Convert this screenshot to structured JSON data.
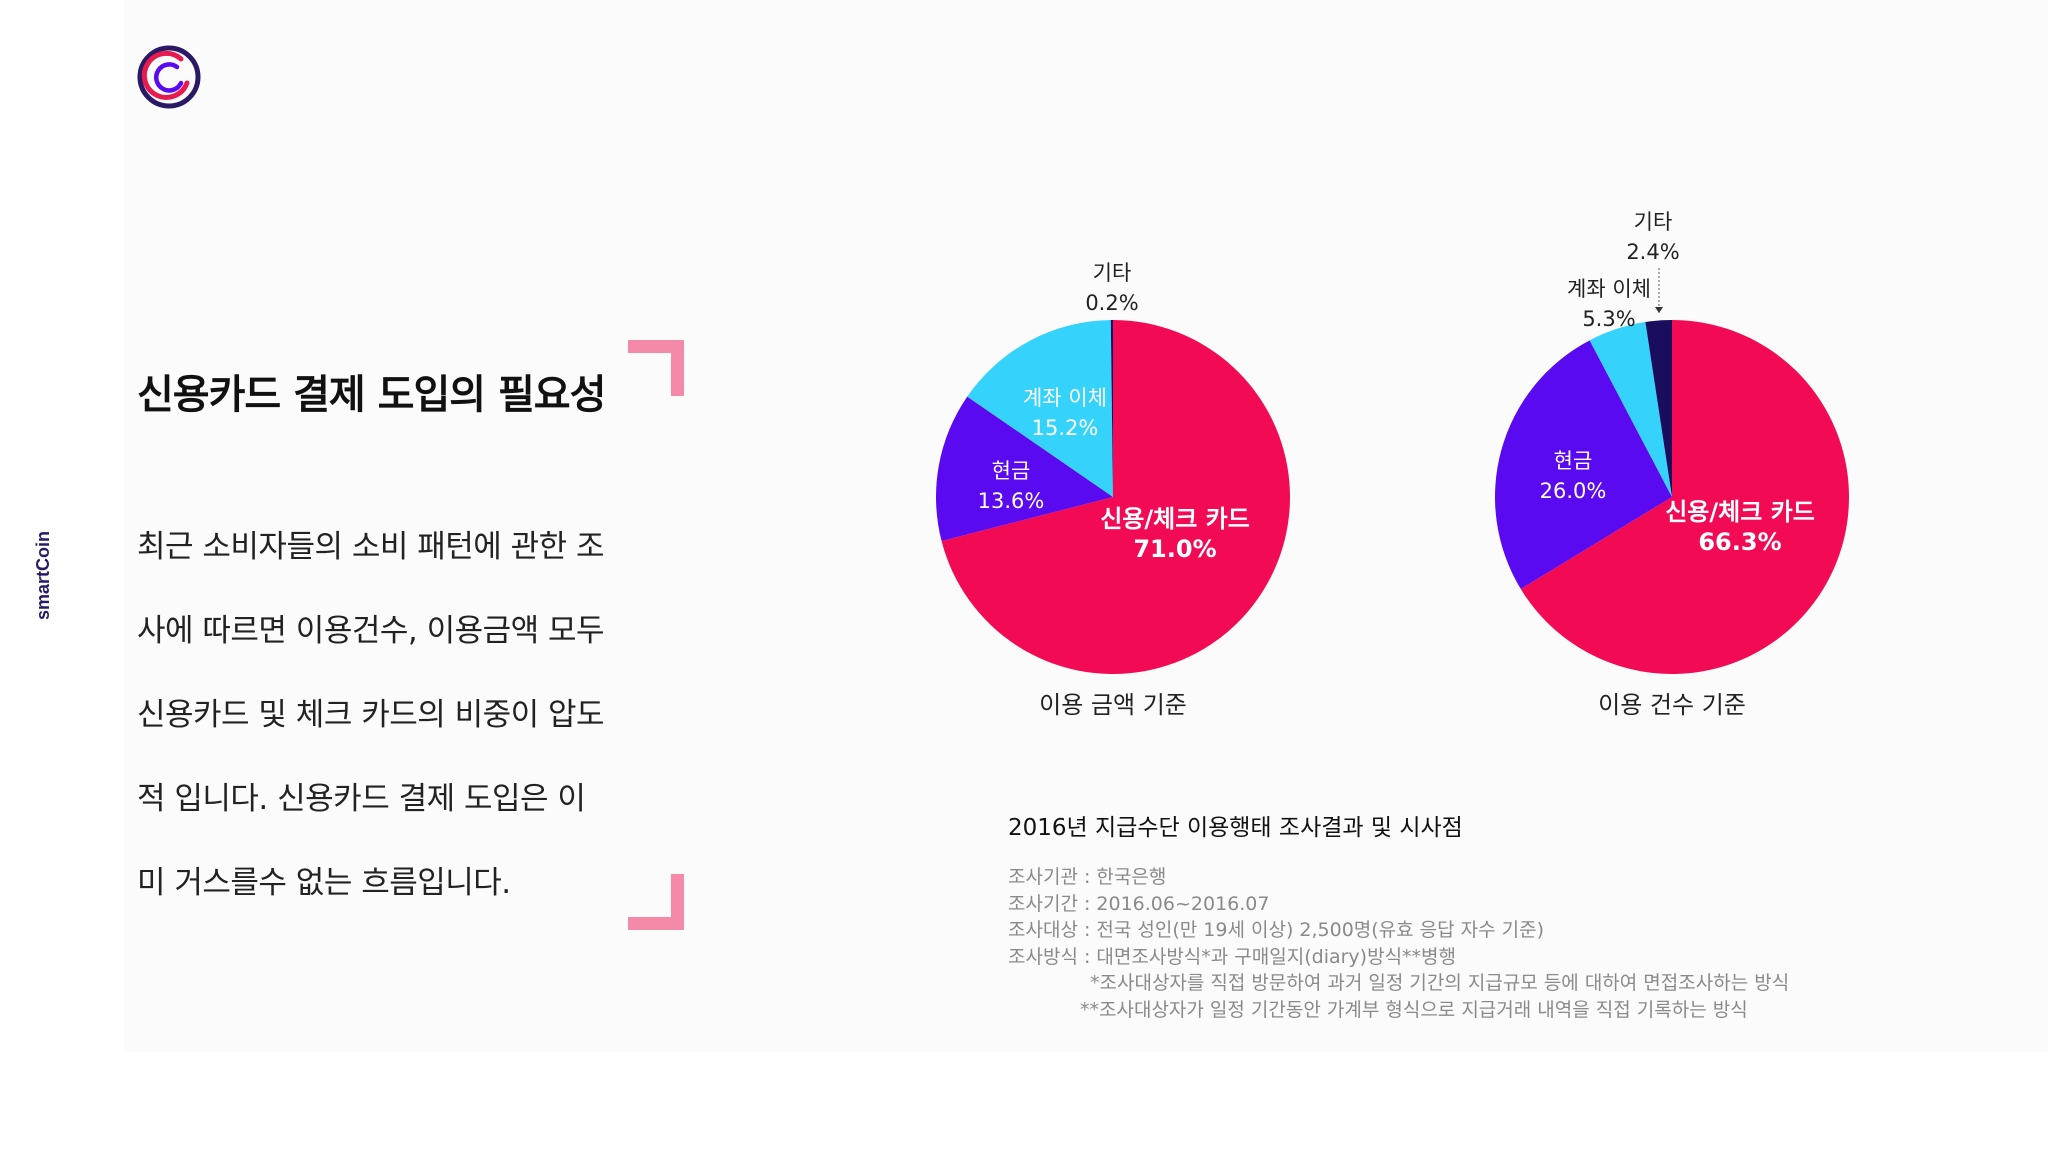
{
  "brand": {
    "side_label": "smartCoin",
    "colors": {
      "logo_outer": "#2a1a66",
      "logo_inner": "#e8194f",
      "accent_bracket": "#f58aa8"
    }
  },
  "slide": {
    "title": "신용카드 결제 도입의 필요성",
    "body_lines": [
      "최근 소비자들의 소비 패턴에 관한 조",
      "사에 따르면 이용건수, 이용금액 모두",
      "신용카드 및 체크 카드의 비중이 압도",
      "적 입니다. 신용카드 결제 도입은 이",
      "미 거스를수 없는 흐름입니다."
    ]
  },
  "chart_data": [
    {
      "type": "pie",
      "xlabel": "이용 금액 기준",
      "slices": [
        {
          "label": "신용/체크 카드",
          "value": 71.0,
          "value_text": "71.0%",
          "color": "#f20a55"
        },
        {
          "label": "현금",
          "value": 13.6,
          "value_text": "13.6%",
          "color": "#5a0af0"
        },
        {
          "label": "계좌 이체",
          "value": 15.2,
          "value_text": "15.2%",
          "color": "#35d2fb"
        },
        {
          "label": "기타",
          "value": 0.2,
          "value_text": "0.2%",
          "color": "#1a0d5e"
        }
      ]
    },
    {
      "type": "pie",
      "xlabel": "이용 건수 기준",
      "slices": [
        {
          "label": "신용/체크 카드",
          "value": 66.3,
          "value_text": "66.3%",
          "color": "#f20a55"
        },
        {
          "label": "현금",
          "value": 26.0,
          "value_text": "26.0%",
          "color": "#5a0af0"
        },
        {
          "label": "계좌 이체",
          "value": 5.3,
          "value_text": "5.3%",
          "color": "#35d2fb"
        },
        {
          "label": "기타",
          "value": 2.4,
          "value_text": "2.4%",
          "color": "#1a0d5e"
        }
      ]
    }
  ],
  "survey": {
    "title": "2016년 지급수단 이용행태 조사결과 및 시사점",
    "lines": [
      "조사기관 : 한국은행",
      "조사기간 : 2016.06~2016.07",
      "조사대상 : 전국 성인(만 19세 이상) 2,500명(유효 응답 자수 기준)",
      "조사방식 : 대면조사방식*과 구매일지(diary)방식**병행",
      "*조사대상자를 직접 방문하여 과거 일정 기간의 지급규모 등에 대하여 면접조사하는 방식",
      "**조사대상자가 일정 기간동안 가계부 형식으로 지급거래 내역을 직접 기록하는 방식"
    ]
  }
}
